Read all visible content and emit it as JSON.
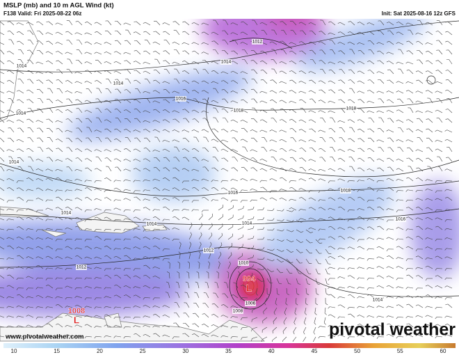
{
  "header": {
    "title": "MSLP (mb) and 10 m AGL Wind (kt)",
    "valid": "F138 Valid: Fri 2025-08-22 06z",
    "init": "Init: Sat 2025-08-16 12z GFS"
  },
  "isobar_labels": [
    "1014",
    "1012",
    "1014",
    "1014",
    "1014",
    "1016",
    "1018",
    "1018",
    "1014",
    "1016",
    "1018",
    "1014",
    "1014",
    "1014",
    "1016",
    "1012",
    "1010",
    "1012",
    "1006",
    "1008",
    "1014"
  ],
  "pressure_centers": [
    {
      "value": "994",
      "symbol": "L"
    },
    {
      "value": "1008",
      "symbol": "L"
    }
  ],
  "colorbar": {
    "ticks": [
      "10",
      "15",
      "20",
      "25",
      "30",
      "35",
      "40",
      "45",
      "50",
      "55",
      "60"
    ]
  },
  "footer": {
    "url": "www.pivotalweather.com",
    "logo": "pivotal weather"
  }
}
